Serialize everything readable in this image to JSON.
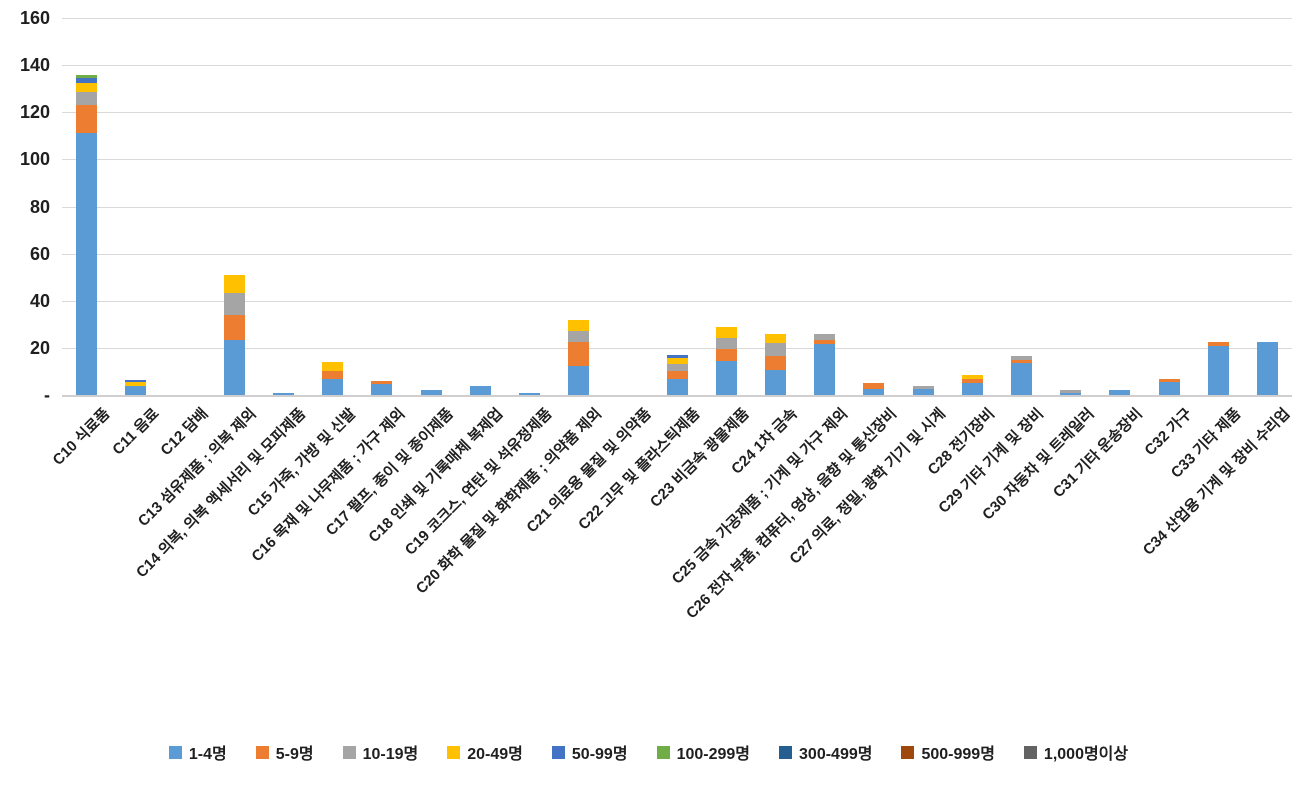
{
  "chart_data": {
    "type": "bar",
    "stacked": true,
    "title": "",
    "grid": true,
    "legend_position": "bottom",
    "categories": [
      "C10 식료품",
      "C11 음료",
      "C12 담배",
      "C13 섬유제품 ; 의복 제외",
      "C14 의복, 의복 액세서리 및 모피제품",
      "C15 가죽, 가방 및 신발",
      "C16 목재 및 나무제품 ; 가구 제외",
      "C17 펄프, 종이 및 종이제품",
      "C18 인쇄 및 기록매체 복제업",
      "C19 코크스, 연탄 및 석유정제품",
      "C20 화학 물질 및 화학제품 ; 의약품 제외",
      "C21 의료용 물질 및 의약품",
      "C22 고무 및 플라스틱제품",
      "C23 비금속 광물제품",
      "C24 1차 금속",
      "C25 금속 가공제품 ; 기계 및 가구 제외",
      "C26 전자 부품, 컴퓨터, 영상, 음향 및 통신장비",
      "C27 의료, 정밀, 광학 기기 및 시계",
      "C28 전기장비",
      "C29 기타 기계 및 장비",
      "C30 자동차 및 트레일러",
      "C31 기타 운송장비",
      "C32 가구",
      "C33 기타 제품",
      "C34 산업용 기계 및 장비 수리업"
    ],
    "series": [
      {
        "name": "1-4명",
        "color": "#5B9BD5",
        "values": [
          111,
          4,
          0,
          23.5,
          1,
          7,
          4.5,
          2,
          4,
          1,
          12.5,
          0,
          7,
          14.5,
          10.5,
          21.5,
          2.5,
          2.5,
          5,
          13.5,
          1,
          2,
          5.5,
          21,
          22.5
        ]
      },
      {
        "name": "5-9명",
        "color": "#ED7D31",
        "values": [
          12,
          0,
          0,
          10.5,
          0,
          3,
          1.5,
          0,
          0,
          0,
          10,
          0,
          3,
          5,
          6,
          2,
          2.5,
          0,
          2,
          1.5,
          0,
          0,
          1.5,
          1.5,
          0
        ]
      },
      {
        "name": "10-19명",
        "color": "#A5A5A5",
        "values": [
          5.5,
          0,
          0,
          9.5,
          0,
          0,
          0,
          0,
          0,
          0,
          4.5,
          0,
          3,
          4.5,
          5.5,
          2.5,
          0,
          1.5,
          0,
          1.5,
          1,
          0,
          0,
          0,
          0
        ]
      },
      {
        "name": "20-49명",
        "color": "#FFC000",
        "values": [
          4,
          1.5,
          0,
          7.5,
          0,
          4,
          0,
          0,
          0,
          0,
          5,
          0,
          2.5,
          5,
          4,
          0,
          0,
          0,
          1.5,
          0,
          0,
          0,
          0,
          0,
          0
        ]
      },
      {
        "name": "50-99명",
        "color": "#4472C4",
        "values": [
          2,
          1,
          0,
          0,
          0,
          0,
          0,
          0,
          0,
          0,
          0,
          0,
          1.5,
          0,
          0,
          0,
          0,
          0,
          0,
          0,
          0,
          0,
          0,
          0,
          0
        ]
      },
      {
        "name": "100-299명",
        "color": "#70AD47",
        "values": [
          1.5,
          0,
          0,
          0,
          0,
          0,
          0,
          0,
          0,
          0,
          0,
          0,
          0,
          0,
          0,
          0,
          0,
          0,
          0,
          0,
          0,
          0,
          0,
          0,
          0
        ]
      },
      {
        "name": "300-499명",
        "color": "#255E91",
        "values": [
          0,
          0,
          0,
          0,
          0,
          0,
          0,
          0,
          0,
          0,
          0,
          0,
          0,
          0,
          0,
          0,
          0,
          0,
          0,
          0,
          0,
          0,
          0,
          0,
          0
        ]
      },
      {
        "name": "500-999명",
        "color": "#9E480E",
        "values": [
          0,
          0,
          0,
          0,
          0,
          0,
          0,
          0,
          0,
          0,
          0,
          0,
          0,
          0,
          0,
          0,
          0,
          0,
          0,
          0,
          0,
          0,
          0,
          0,
          0
        ]
      },
      {
        "name": "1,000명이상",
        "color": "#636363",
        "values": [
          0,
          0,
          0,
          0,
          0,
          0,
          0,
          0,
          0,
          0,
          0,
          0,
          0,
          0,
          0,
          0,
          0,
          0,
          0,
          0,
          0,
          0,
          0,
          0,
          0
        ]
      }
    ],
    "y_axis": {
      "min": 0,
      "max": 160,
      "step": 20,
      "tick_labels": [
        "-",
        "20",
        "40",
        "60",
        "80",
        "100",
        "120",
        "140",
        "160"
      ],
      "zero_label": "-"
    },
    "xlabel": "",
    "ylabel": ""
  }
}
